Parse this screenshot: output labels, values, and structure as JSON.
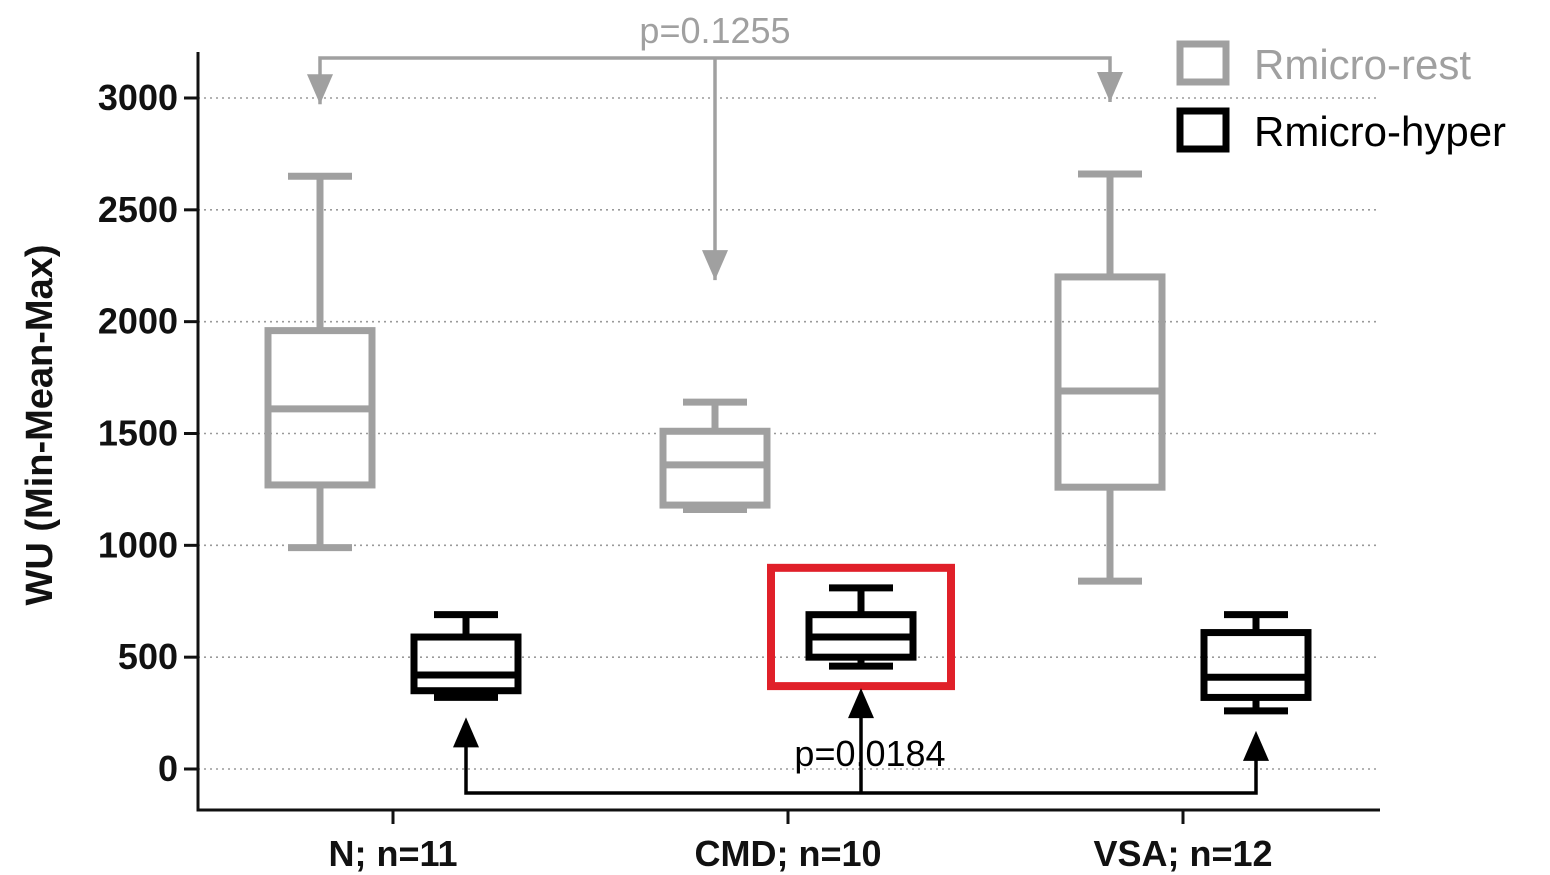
{
  "chart_data": {
    "type": "box",
    "ylabel": "WU (Min-Mean-Max)",
    "ylim": [
      0,
      3000
    ],
    "yticks": [
      0,
      500,
      1000,
      1500,
      2000,
      2500,
      3000
    ],
    "categories": [
      "N; n=11",
      "CMD; n=10",
      "VSA; n=12"
    ],
    "grid": "horizontal dotted",
    "legend_position": "top-right",
    "series": [
      {
        "name": "Rmicro-rest",
        "color": "#a0a0a0",
        "boxes": [
          {
            "min": 990,
            "q1": 1270,
            "mid": 1610,
            "q3": 1960,
            "max": 2650
          },
          {
            "min": 1160,
            "q1": 1180,
            "mid": 1360,
            "q3": 1510,
            "max": 1640
          },
          {
            "min": 840,
            "q1": 1260,
            "mid": 1690,
            "q3": 2200,
            "max": 2660
          }
        ]
      },
      {
        "name": "Rmicro-hyper",
        "color": "#000000",
        "boxes": [
          {
            "min": 320,
            "q1": 350,
            "mid": 420,
            "q3": 590,
            "max": 690
          },
          {
            "min": 460,
            "q1": 500,
            "mid": 590,
            "q3": 690,
            "max": 810
          },
          {
            "min": 260,
            "q1": 320,
            "mid": 410,
            "q3": 610,
            "max": 690
          }
        ]
      }
    ],
    "annotations": [
      {
        "text": "p=0.1255",
        "series": "Rmicro-rest",
        "color": "#a0a0a0"
      },
      {
        "text": "p=0.0184",
        "series": "Rmicro-hyper",
        "color": "#000000"
      }
    ],
    "highlight": {
      "category": "CMD; n=10",
      "series": "Rmicro-hyper",
      "color": "#e02029"
    }
  }
}
